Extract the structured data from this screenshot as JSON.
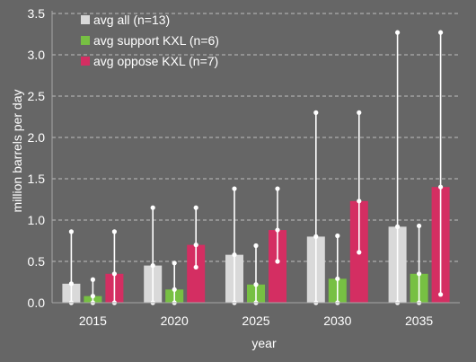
{
  "chart_data": {
    "type": "bar",
    "title": "",
    "xlabel": "year",
    "ylabel": "million barrels per day",
    "ylim": [
      0,
      3.5
    ],
    "yticks": [
      "0.0",
      "0.5",
      "1.0",
      "1.5",
      "2.0",
      "2.5",
      "3.0",
      "3.5"
    ],
    "categories": [
      "2015",
      "2020",
      "2025",
      "2030",
      "2035"
    ],
    "grid": true,
    "legend_position": "top-left",
    "series": [
      {
        "name": "avg all (n=13)",
        "color": "#d9d9d9",
        "values": [
          0.23,
          0.45,
          0.58,
          0.8,
          0.92
        ],
        "ranges": [
          {
            "min": 0.0,
            "max": 0.86,
            "markers": [
              0.0,
              0.23,
              0.86
            ]
          },
          {
            "min": 0.0,
            "max": 1.15,
            "markers": [
              0.0,
              0.45,
              1.15
            ]
          },
          {
            "min": 0.0,
            "max": 1.38,
            "markers": [
              0.0,
              0.58,
              1.38
            ]
          },
          {
            "min": 0.0,
            "max": 2.3,
            "markers": [
              0.0,
              0.8,
              2.3
            ]
          },
          {
            "min": 0.0,
            "max": 3.27,
            "markers": [
              0.0,
              0.92,
              3.27
            ]
          }
        ]
      },
      {
        "name": "avg support KXL (n=6)",
        "color": "#77c043",
        "values": [
          0.08,
          0.16,
          0.22,
          0.29,
          0.35
        ],
        "ranges": [
          {
            "min": 0.0,
            "max": 0.28,
            "markers": [
              0.0,
              0.08,
              0.28
            ]
          },
          {
            "min": 0.0,
            "max": 0.48,
            "markers": [
              0.0,
              0.16,
              0.48
            ]
          },
          {
            "min": 0.0,
            "max": 0.69,
            "markers": [
              0.0,
              0.22,
              0.69
            ]
          },
          {
            "min": 0.0,
            "max": 0.81,
            "markers": [
              0.0,
              0.29,
              0.81
            ]
          },
          {
            "min": 0.0,
            "max": 0.93,
            "markers": [
              0.0,
              0.35,
              0.93
            ]
          }
        ]
      },
      {
        "name": "avg oppose KXL (n=7)",
        "color": "#d42e62",
        "values": [
          0.35,
          0.7,
          0.88,
          1.23,
          1.4
        ],
        "ranges": [
          {
            "min": 0.0,
            "max": 0.86,
            "markers": [
              0.0,
              0.35,
              0.86
            ]
          },
          {
            "min": 0.43,
            "max": 1.15,
            "markers": [
              0.43,
              0.7,
              1.15
            ]
          },
          {
            "min": 0.5,
            "max": 1.38,
            "markers": [
              0.5,
              0.88,
              1.38
            ]
          },
          {
            "min": 0.61,
            "max": 2.3,
            "markers": [
              0.61,
              1.23,
              2.3
            ]
          },
          {
            "min": 0.1,
            "max": 3.27,
            "markers": [
              0.1,
              1.4,
              3.27
            ]
          }
        ]
      }
    ]
  }
}
